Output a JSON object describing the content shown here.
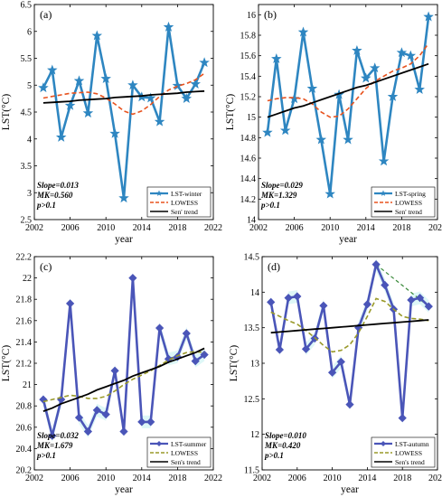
{
  "chart_data": [
    {
      "type": "line",
      "panel_label": "(a)",
      "ylabel": "LST(°C)",
      "xlabel": "year",
      "x_ticks": [
        "2002",
        "2006",
        "2010",
        "2014",
        "2018",
        "2022"
      ],
      "y_ticks": [
        "2.5",
        "3",
        "3.5",
        "4",
        "4.5",
        "5",
        "5.5",
        "6",
        "6.5"
      ],
      "xlim": [
        2002,
        2022
      ],
      "ylim": [
        2.5,
        6.5
      ],
      "x": [
        2003,
        2004,
        2005,
        2006,
        2007,
        2008,
        2009,
        2010,
        2011,
        2012,
        2013,
        2014,
        2015,
        2016,
        2017,
        2018,
        2019,
        2020,
        2021
      ],
      "series": [
        {
          "name": "LST-winter",
          "values": [
            4.95,
            5.28,
            4.03,
            4.62,
            5.08,
            4.48,
            5.92,
            5.12,
            4.1,
            2.9,
            5.0,
            4.78,
            4.76,
            4.32,
            6.08,
            4.99,
            4.75,
            5.02,
            5.42
          ],
          "color": "#2e86c1"
        },
        {
          "name": "LOWESS",
          "values": [
            4.76,
            4.79,
            4.82,
            4.85,
            4.86,
            4.87,
            4.84,
            4.76,
            4.65,
            4.52,
            4.46,
            4.52,
            4.64,
            4.79,
            4.91,
            4.98,
            5.03,
            5.1,
            5.22
          ],
          "color": "#e8531f"
        },
        {
          "name": "Sen' trend",
          "values": [
            4.67,
            4.68,
            4.69,
            4.7,
            4.72,
            4.73,
            4.74,
            4.75,
            4.77,
            4.78,
            4.79,
            4.8,
            4.82,
            4.83,
            4.84,
            4.85,
            4.87,
            4.88,
            4.89
          ],
          "color": "#000000"
        }
      ],
      "annotations": [
        "Slope=0.013",
        "MK=0.560",
        "p>0.1"
      ],
      "legend_position": "bottom-right"
    },
    {
      "type": "line",
      "panel_label": "(b)",
      "ylabel": "LST(°C)",
      "xlabel": "year",
      "x_ticks": [
        "2002",
        "2006",
        "2010",
        "2014",
        "2018",
        "2022"
      ],
      "y_ticks": [
        "14",
        "14.2",
        "14.4",
        "14.6",
        "14.8",
        "15",
        "15.2",
        "15.4",
        "15.6",
        "15.8",
        "16"
      ],
      "xlim": [
        2002,
        2022
      ],
      "ylim": [
        14,
        16.1
      ],
      "x": [
        2003,
        2004,
        2005,
        2006,
        2007,
        2008,
        2009,
        2010,
        2011,
        2012,
        2013,
        2014,
        2015,
        2016,
        2017,
        2018,
        2019,
        2020,
        2021
      ],
      "series": [
        {
          "name": "LST-spring",
          "values": [
            14.85,
            15.57,
            14.87,
            15.18,
            15.83,
            15.28,
            14.78,
            14.25,
            15.22,
            14.78,
            15.65,
            15.38,
            15.48,
            14.57,
            15.2,
            15.63,
            15.6,
            15.27,
            15.98
          ],
          "color": "#2e86c1"
        },
        {
          "name": "LOWESS",
          "values": [
            15.16,
            15.18,
            15.19,
            15.19,
            15.18,
            15.13,
            15.05,
            15.0,
            15.01,
            15.08,
            15.18,
            15.28,
            15.35,
            15.4,
            15.45,
            15.48,
            15.52,
            15.6,
            15.72
          ],
          "color": "#e8531f"
        },
        {
          "name": "Sen' trend",
          "values": [
            15.0,
            15.03,
            15.06,
            15.09,
            15.11,
            15.14,
            15.17,
            15.2,
            15.23,
            15.26,
            15.29,
            15.31,
            15.34,
            15.37,
            15.4,
            15.43,
            15.46,
            15.49,
            15.52
          ],
          "color": "#000000"
        }
      ],
      "annotations": [
        "Slope=0.029",
        "MK=1.329",
        "p>0.1"
      ],
      "legend_position": "bottom-right"
    },
    {
      "type": "line",
      "panel_label": "(c)",
      "ylabel": "LST(°C)",
      "xlabel": "year",
      "x_ticks": [
        "2002",
        "2006",
        "2010",
        "2014",
        "2018",
        "2022"
      ],
      "y_ticks": [
        "20.2",
        "20.4",
        "20.6",
        "20.8",
        "21",
        "21.2",
        "21.4",
        "21.6",
        "21.8",
        "22",
        "22.2"
      ],
      "xlim": [
        2002,
        2022
      ],
      "ylim": [
        20.2,
        22.2
      ],
      "x": [
        2003,
        2004,
        2005,
        2006,
        2007,
        2008,
        2009,
        2010,
        2011,
        2012,
        2013,
        2014,
        2015,
        2016,
        2017,
        2018,
        2019,
        2020,
        2021
      ],
      "series": [
        {
          "name": "LST-summer",
          "values": [
            20.86,
            20.52,
            20.86,
            21.76,
            20.69,
            20.56,
            20.76,
            20.72,
            21.13,
            20.56,
            22.0,
            20.65,
            20.65,
            21.53,
            21.24,
            21.26,
            21.48,
            21.22,
            21.28
          ],
          "color": "#4a55b8"
        },
        {
          "name": "LOWESS",
          "values": [
            20.84,
            20.86,
            20.88,
            20.9,
            20.89,
            20.87,
            20.87,
            20.89,
            20.94,
            21.0,
            21.05,
            21.09,
            21.13,
            21.18,
            21.23,
            21.27,
            21.3,
            21.31,
            21.3
          ],
          "color": "#9a9a2a"
        },
        {
          "name": "Sen's trend",
          "values": [
            20.75,
            20.78,
            20.82,
            20.85,
            20.88,
            20.91,
            20.95,
            20.98,
            21.01,
            21.04,
            21.08,
            21.11,
            21.14,
            21.17,
            21.21,
            21.24,
            21.27,
            21.3,
            21.34
          ],
          "color": "#000000"
        }
      ],
      "annotations": [
        "Slope=0.032",
        "MK=1.679",
        "p>0.1"
      ],
      "legend_position": "bottom-right"
    },
    {
      "type": "line",
      "panel_label": "(d)",
      "ylabel": "LST(°C)",
      "xlabel": "year",
      "x_ticks": [
        "2002",
        "2006",
        "2010",
        "2014",
        "2018",
        "2022"
      ],
      "y_ticks": [
        "11.5",
        "12",
        "12.5",
        "13",
        "13.5",
        "14",
        "14.5"
      ],
      "xlim": [
        2002,
        2022
      ],
      "ylim": [
        11.5,
        14.5
      ],
      "x": [
        2003,
        2004,
        2005,
        2006,
        2007,
        2008,
        2009,
        2010,
        2011,
        2012,
        2013,
        2014,
        2015,
        2016,
        2017,
        2018,
        2019,
        2020,
        2021
      ],
      "series": [
        {
          "name": "LST-autumn",
          "values": [
            13.86,
            13.19,
            13.92,
            13.94,
            13.2,
            13.35,
            13.81,
            12.87,
            13.02,
            12.42,
            13.5,
            13.83,
            14.39,
            14.1,
            13.76,
            12.23,
            13.89,
            13.92,
            13.8
          ],
          "color": "#4a55b8"
        },
        {
          "name": "LOWESS",
          "values": [
            13.72,
            13.66,
            13.6,
            13.55,
            13.46,
            13.36,
            13.25,
            13.16,
            13.18,
            13.26,
            13.43,
            13.66,
            13.91,
            13.87,
            13.76,
            13.66,
            13.63,
            13.62,
            13.6
          ],
          "color": "#9a9a2a"
        },
        {
          "name": "Sen's trend",
          "values": [
            13.43,
            13.44,
            13.45,
            13.46,
            13.47,
            13.48,
            13.49,
            13.5,
            13.51,
            13.52,
            13.53,
            13.54,
            13.55,
            13.56,
            13.57,
            13.58,
            13.59,
            13.6,
            13.61
          ],
          "color": "#000000"
        }
      ],
      "annotations": [
        "Slope=0.010",
        "MK=0.420",
        "p>0.1"
      ],
      "legend_position": "bottom-right",
      "extra_line": {
        "x": [
          2015,
          2021
        ],
        "values": [
          14.39,
          13.8
        ],
        "color": "#3a8a3a"
      }
    }
  ]
}
